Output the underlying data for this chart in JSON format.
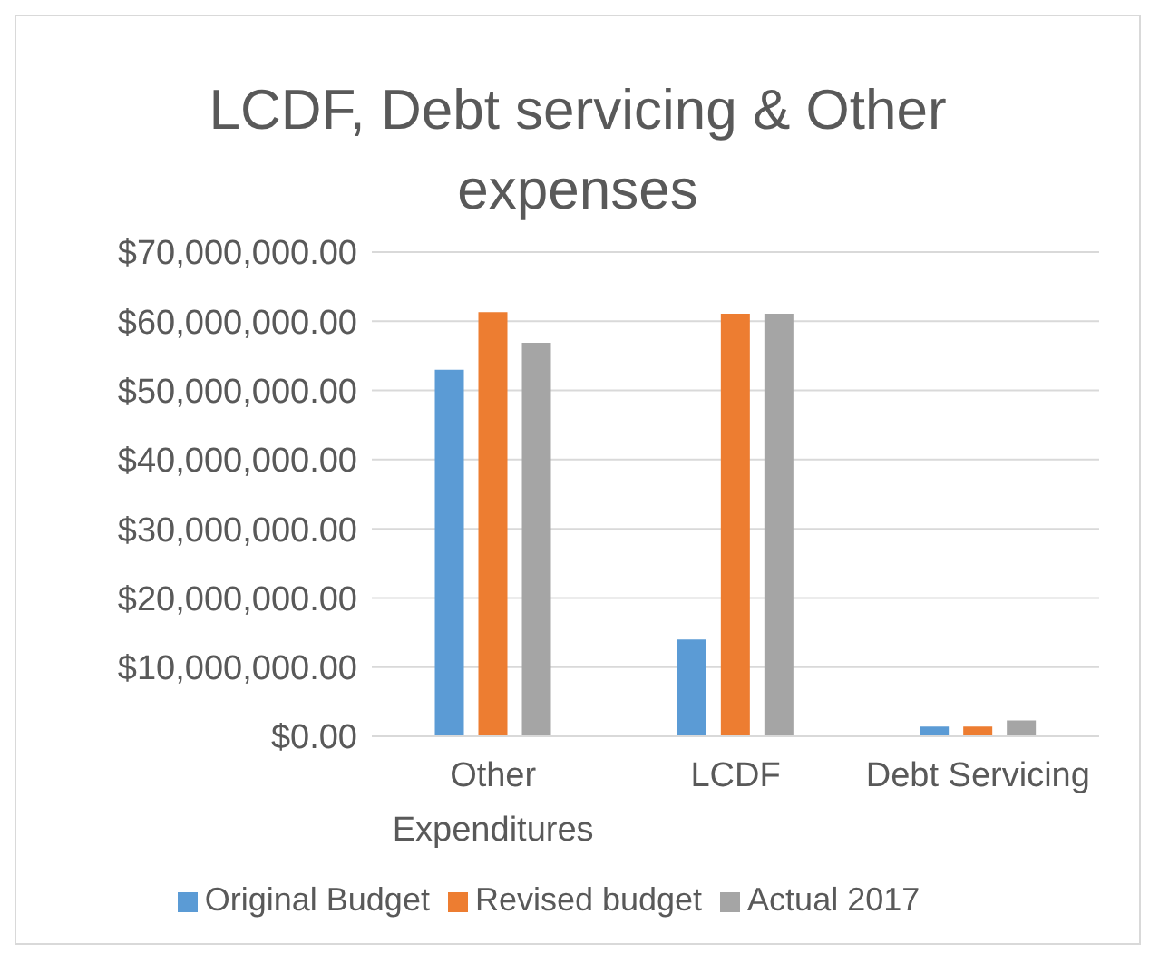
{
  "chart_data": {
    "type": "bar",
    "title": "LCDF, Debt servicing & Other expenses",
    "categories": [
      "Other Expenditures",
      "LCDF",
      "Debt Servicing"
    ],
    "series": [
      {
        "name": "Original Budget",
        "color": "#5b9bd5",
        "values": [
          53000000,
          14000000,
          1400000
        ]
      },
      {
        "name": "Revised budget",
        "color": "#ed7d31",
        "values": [
          61300000,
          61100000,
          1400000
        ]
      },
      {
        "name": "Actual 2017",
        "color": "#a5a5a5",
        "values": [
          56900000,
          61100000,
          2300000
        ]
      }
    ],
    "ylim": [
      0,
      70000000
    ],
    "yticks": [
      {
        "value": 0,
        "label": "$0.00"
      },
      {
        "value": 10000000,
        "label": "$10,000,000.00"
      },
      {
        "value": 20000000,
        "label": "$20,000,000.00"
      },
      {
        "value": 30000000,
        "label": "$30,000,000.00"
      },
      {
        "value": 40000000,
        "label": "$40,000,000.00"
      },
      {
        "value": 50000000,
        "label": "$50,000,000.00"
      },
      {
        "value": 60000000,
        "label": "$60,000,000.00"
      },
      {
        "value": 70000000,
        "label": "$70,000,000.00"
      }
    ],
    "grid": "y",
    "legend": "bottom"
  }
}
